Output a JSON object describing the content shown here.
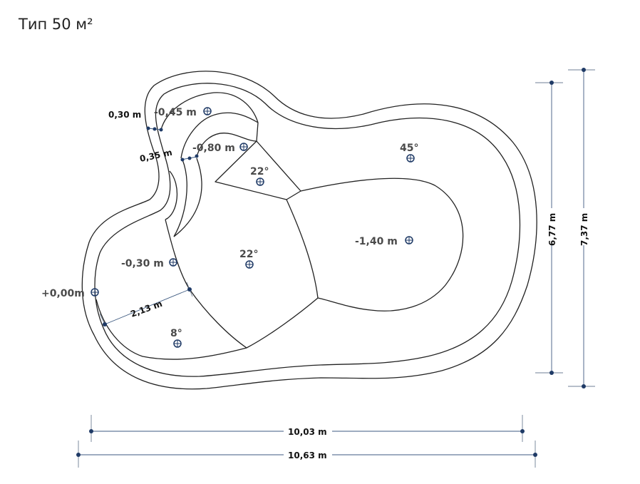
{
  "title": "Тип 50 м²",
  "depths": {
    "shallow_start": "+0,00m",
    "entry_zone": "-0,30 m",
    "step_one": "-0,45 m",
    "step_two": "-0,80 m",
    "deep": "-1,40 m"
  },
  "slopes": {
    "entry": "8°",
    "mid": "22°",
    "upper": "22°",
    "deep_end": "45°"
  },
  "dimensions": {
    "step_width_1": "0,30 m",
    "step_width_2": "0,35 m",
    "entry_length": "2,13 m",
    "inner_width": "6,77 m",
    "outer_width": "7,37 m",
    "inner_length": "10,03 m",
    "outer_length": "10,63 m"
  },
  "colors": {
    "outline": "#222222",
    "dimension": "#3d5a80",
    "marker": "#1f3a66"
  },
  "icons": {
    "level_marker": "crosshair-circle-icon"
  }
}
